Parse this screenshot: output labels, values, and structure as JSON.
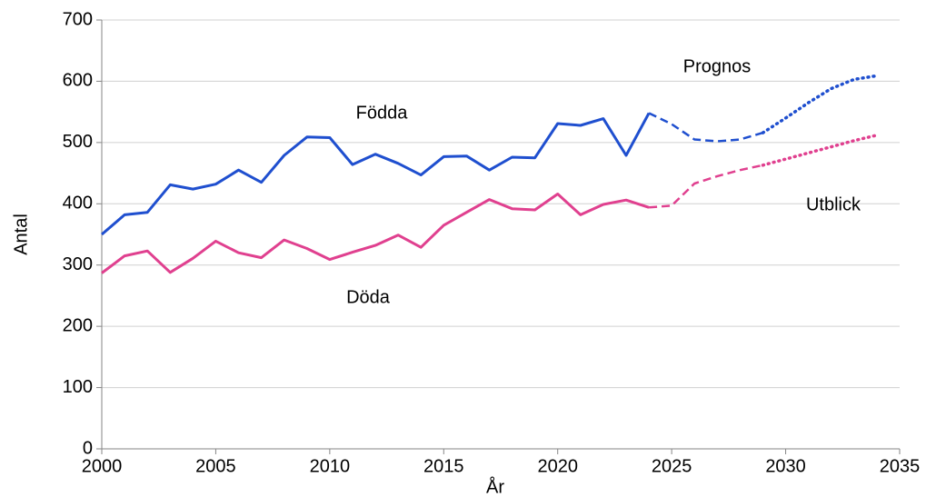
{
  "chart_data": {
    "type": "line",
    "x_label": "År",
    "y_label": "Antal",
    "annotations": [
      "Födda",
      "Döda",
      "Prognos",
      "Utblick"
    ],
    "x": [
      2000,
      2001,
      2002,
      2003,
      2004,
      2005,
      2006,
      2007,
      2008,
      2009,
      2010,
      2011,
      2012,
      2013,
      2014,
      2015,
      2016,
      2017,
      2018,
      2019,
      2020,
      2021,
      2022,
      2023,
      2024,
      2025,
      2026,
      2027,
      2028,
      2029,
      2030,
      2031,
      2032,
      2033,
      2034
    ],
    "series": [
      {
        "color": "#1f4fcf",
        "dash": "solid",
        "values": [
          350,
          382,
          386,
          431,
          424,
          432,
          455,
          435,
          479,
          509,
          508,
          464,
          481,
          466,
          447,
          477,
          478,
          455,
          476,
          475,
          531,
          528,
          539,
          479,
          548,
          null,
          null,
          null,
          null,
          null,
          null,
          null,
          null,
          null,
          null
        ]
      },
      {
        "color": "#1f4fcf",
        "dash": "dashed",
        "values": [
          null,
          null,
          null,
          null,
          null,
          null,
          null,
          null,
          null,
          null,
          null,
          null,
          null,
          null,
          null,
          null,
          null,
          null,
          null,
          null,
          null,
          null,
          null,
          null,
          548,
          530,
          505,
          502,
          505,
          516,
          null,
          null,
          null,
          null,
          null
        ]
      },
      {
        "color": "#1f4fcf",
        "dash": "dotted",
        "values": [
          null,
          null,
          null,
          null,
          null,
          null,
          null,
          null,
          null,
          null,
          null,
          null,
          null,
          null,
          null,
          null,
          null,
          null,
          null,
          null,
          null,
          null,
          null,
          null,
          null,
          null,
          null,
          null,
          null,
          516,
          540,
          565,
          588,
          603,
          609
        ]
      },
      {
        "color": "#e0408f",
        "dash": "solid",
        "values": [
          287,
          315,
          323,
          288,
          311,
          339,
          320,
          312,
          341,
          327,
          309,
          321,
          332,
          349,
          329,
          365,
          386,
          407,
          392,
          390,
          416,
          382,
          399,
          406,
          394,
          null,
          null,
          null,
          null,
          null,
          null,
          null,
          null,
          null,
          null
        ]
      },
      {
        "color": "#e0408f",
        "dash": "dashed",
        "values": [
          null,
          null,
          null,
          null,
          null,
          null,
          null,
          null,
          null,
          null,
          null,
          null,
          null,
          null,
          null,
          null,
          null,
          null,
          null,
          null,
          null,
          null,
          null,
          null,
          394,
          397,
          433,
          445,
          455,
          463,
          null,
          null,
          null,
          null,
          null
        ]
      },
      {
        "color": "#e0408f",
        "dash": "dotted",
        "values": [
          null,
          null,
          null,
          null,
          null,
          null,
          null,
          null,
          null,
          null,
          null,
          null,
          null,
          null,
          null,
          null,
          null,
          null,
          null,
          null,
          null,
          null,
          null,
          null,
          null,
          null,
          null,
          null,
          null,
          463,
          473,
          483,
          493,
          503,
          512
        ]
      }
    ],
    "xlim": [
      2000,
      2035
    ],
    "xticks": [
      2000,
      2005,
      2010,
      2015,
      2020,
      2025,
      2030,
      2035
    ],
    "ylim": [
      0,
      700
    ],
    "yticks": [
      0,
      100,
      200,
      300,
      400,
      500,
      600,
      700
    ],
    "grid": true
  }
}
